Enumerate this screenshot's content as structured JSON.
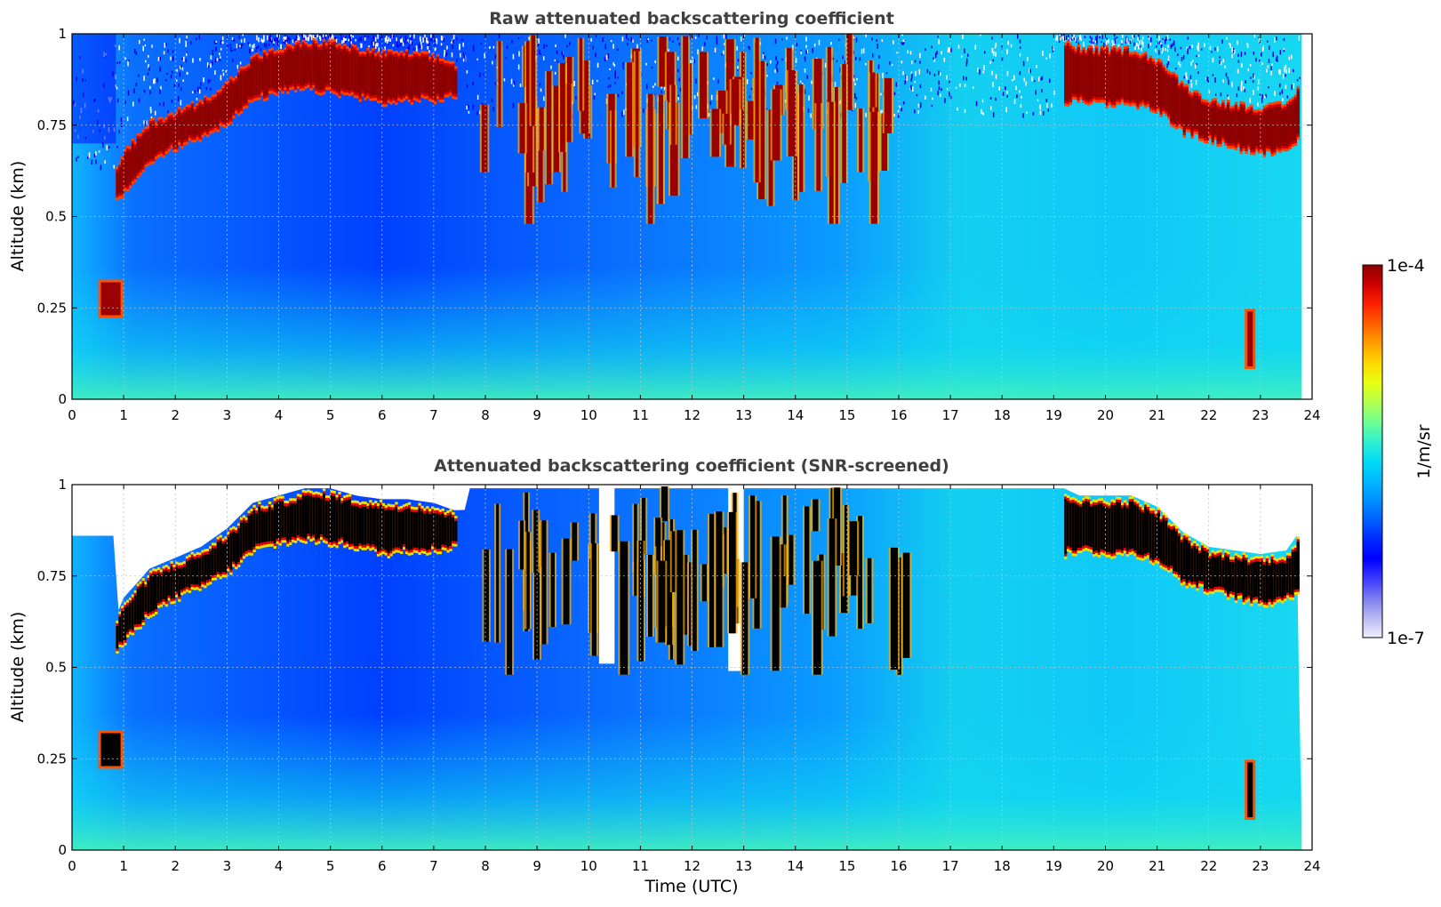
{
  "chart_data": [
    {
      "type": "heatmap",
      "title": "Raw attenuated backscattering coefficient",
      "xlabel": "",
      "ylabel": "Altitude (km)",
      "xlim": [
        0,
        24
      ],
      "ylim": [
        0,
        1
      ],
      "xticks": [
        "0",
        "1",
        "2",
        "3",
        "4",
        "5",
        "6",
        "7",
        "8",
        "9",
        "10",
        "11",
        "12",
        "13",
        "14",
        "15",
        "16",
        "17",
        "18",
        "19",
        "20",
        "21",
        "22",
        "23",
        "24"
      ],
      "yticks": [
        "0",
        "0.25",
        "0.5",
        "0.75",
        "1"
      ],
      "grid": true,
      "cloud_top_km": {
        "x": [
          0.85,
          1,
          1.5,
          2,
          2.5,
          3,
          3.5,
          4,
          4.5,
          5,
          5.5,
          6,
          6.5,
          7,
          7.4,
          19.2,
          19.5,
          20,
          20.5,
          21,
          21.5,
          22,
          22.5,
          23,
          23.5,
          23.75
        ],
        "y": [
          0.62,
          0.67,
          0.75,
          0.78,
          0.81,
          0.86,
          0.93,
          0.95,
          0.97,
          0.97,
          0.95,
          0.94,
          0.94,
          0.93,
          0.91,
          0.97,
          0.95,
          0.95,
          0.95,
          0.92,
          0.85,
          0.81,
          0.8,
          0.79,
          0.8,
          0.85
        ]
      },
      "cloud_base_km": {
        "x": [
          0.85,
          1,
          1.5,
          2,
          2.5,
          3,
          3.5,
          4,
          4.5,
          5,
          5.5,
          6,
          6.5,
          7,
          7.4,
          19.2,
          19.5,
          20,
          20.5,
          21,
          21.5,
          22,
          22.5,
          23,
          23.5,
          23.75
        ],
        "y": [
          0.55,
          0.58,
          0.66,
          0.7,
          0.73,
          0.77,
          0.83,
          0.85,
          0.86,
          0.85,
          0.84,
          0.82,
          0.83,
          0.83,
          0.84,
          0.82,
          0.83,
          0.82,
          0.82,
          0.8,
          0.74,
          0.72,
          0.7,
          0.68,
          0.7,
          0.72
        ]
      },
      "low_features": [
        {
          "x": 0.75,
          "y_km": [
            0.23,
            0.32
          ]
        },
        {
          "x": 22.8,
          "y_km": [
            0.09,
            0.24
          ]
        }
      ],
      "broken_cloud_region_utc": [
        7.8,
        16.2
      ]
    },
    {
      "type": "heatmap",
      "title": "Attenuated backscattering coefficient (SNR-screened)",
      "xlabel": "Time (UTC)",
      "ylabel": "Altitude (km)",
      "xlim": [
        0,
        24
      ],
      "ylim": [
        0,
        1
      ],
      "xticks": [
        "0",
        "1",
        "2",
        "3",
        "4",
        "5",
        "6",
        "7",
        "8",
        "9",
        "10",
        "11",
        "12",
        "13",
        "14",
        "15",
        "16",
        "17",
        "18",
        "19",
        "20",
        "21",
        "22",
        "23",
        "24"
      ],
      "yticks": [
        "0",
        "0.25",
        "0.5",
        "0.75",
        "1"
      ],
      "grid": true,
      "screened_gap_utc": [
        [
          10.2,
          10.5
        ],
        [
          12.7,
          13.0
        ]
      ]
    }
  ],
  "colorbar": {
    "max_label": "1e-4",
    "min_label": "1e-7",
    "label": "1/m/sr",
    "colors": [
      "#eeeeff",
      "#b8b8f4",
      "#7d7df0",
      "#3a3aff",
      "#0000ff",
      "#0028ff",
      "#0060ff",
      "#0090ff",
      "#00b8ff",
      "#00dcf4",
      "#30f0d0",
      "#70ff90",
      "#b4ff50",
      "#e8ff10",
      "#ffd800",
      "#ffa000",
      "#ff6000",
      "#ff2000",
      "#d00000",
      "#8b0000"
    ],
    "saturated_color": "#000000"
  }
}
